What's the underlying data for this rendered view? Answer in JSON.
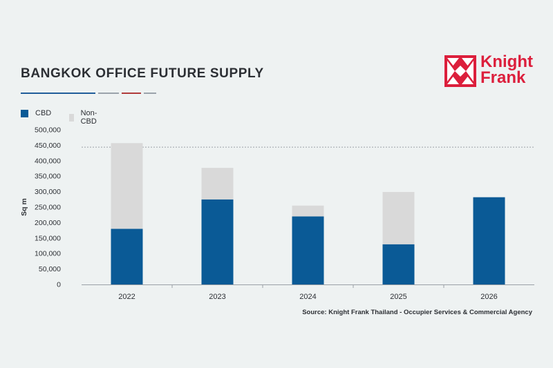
{
  "header": {
    "title": "BANGKOK OFFICE FUTURE SUPPLY",
    "rule_colors": [
      "#1f5c99",
      "#9aa3ab",
      "#b03a3a",
      "#9aa3ab"
    ]
  },
  "logo": {
    "line1": "Knight",
    "line2": "Frank",
    "color": "#dc1f3c",
    "icon": "knight-frank-mark"
  },
  "colors": {
    "cbd": "#0a5a96",
    "non_cbd": "#d9d9d9",
    "text": "#2c2f34",
    "axis": "#9aa0a6",
    "reference_line": "#9aa0a6"
  },
  "chart_data": {
    "type": "bar",
    "stacked": true,
    "categories": [
      "2022",
      "2023",
      "2024",
      "2025",
      "2026"
    ],
    "series": [
      {
        "name": "CBD",
        "values": [
          180000,
          275000,
          220000,
          130000,
          282000
        ]
      },
      {
        "name": "Non-CBD",
        "values": [
          277000,
          102000,
          35000,
          169000,
          0
        ]
      }
    ],
    "ylabel": "Sq m",
    "ylim": [
      0,
      500000
    ],
    "yticks": [
      0,
      50000,
      100000,
      150000,
      200000,
      250000,
      300000,
      350000,
      400000,
      450000,
      500000
    ],
    "ytick_labels": [
      "0",
      "50,000",
      "100,000",
      "150,000",
      "200,000",
      "250,000",
      "300,000",
      "350,000",
      "400,000",
      "450,000",
      "500,000"
    ],
    "reference_line": 444000,
    "grid": false,
    "legend": "top-left"
  },
  "source": "Source: Knight Frank Thailand - Occupier Services & Commercial Agency"
}
